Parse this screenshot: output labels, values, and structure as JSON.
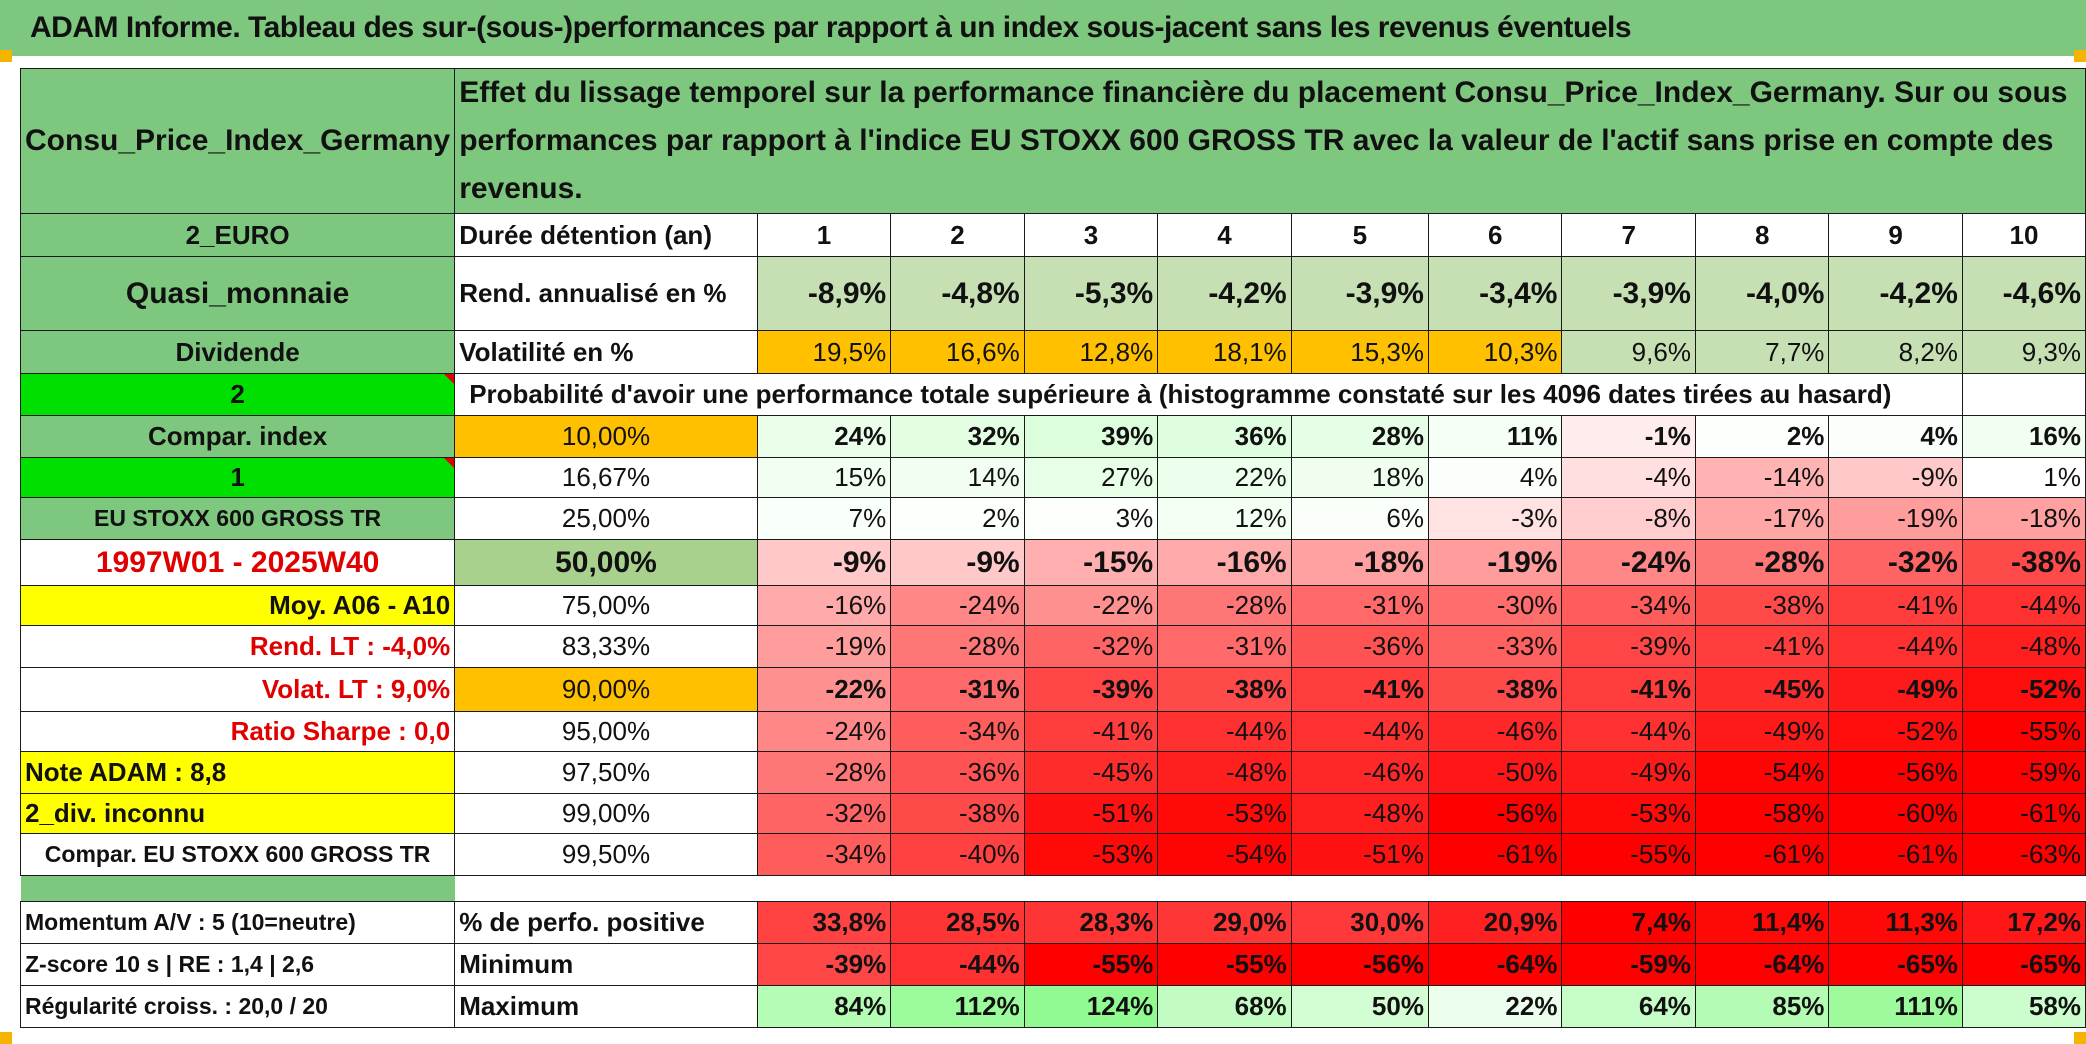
{
  "banner_title": "ADAM Informe. Tableau des sur-(sous-)performances par rapport à un index sous-jacent sans les revenus éventuels",
  "header": {
    "asset_name": "Consu_Price_Index_Germany",
    "description": "Effet du lissage temporel sur la performance financière du placement Consu_Price_Index_Germany. Sur ou sous performances par rapport à l'indice EU STOXX 600 GROSS TR avec la valeur de l'actif sans prise en compte des revenus."
  },
  "left_labels": {
    "currency": "2_EURO",
    "category": "Quasi_monnaie",
    "dividend": "Dividende",
    "input_1": "2",
    "compar_index": "Compar. index",
    "input_2": "1",
    "index_name": "EU STOXX 600 GROSS TR",
    "period": "1997W01 - 2025W40",
    "moy": "Moy. A06 - A10",
    "rend_lt": "Rend. LT :    -4,0%",
    "volat_lt": "Volat. LT :   9,0%",
    "sharpe": "Ratio Sharpe :    0,0",
    "note": "Note ADAM : 8,8",
    "div_inconnu": "2_div. inconnu",
    "compar_full": "Compar. EU STOXX 600 GROSS TR",
    "momentum": "Momentum A/V : 5 (10=neutre)",
    "zscore": "Z-score 10 s | RE : 1,4 | 2,6",
    "regularite": "Régularité croiss. : 20,0 / 20"
  },
  "summary": {
    "duration_label": "Durée détention (an)",
    "years": [
      "1",
      "2",
      "3",
      "4",
      "5",
      "6",
      "7",
      "8",
      "9",
      "10"
    ],
    "rend_label": "Rend. annualisé en %",
    "rend": [
      "-8,9%",
      "-4,8%",
      "-5,3%",
      "-4,2%",
      "-3,9%",
      "-3,4%",
      "-3,9%",
      "-4,0%",
      "-4,2%",
      "-4,6%"
    ],
    "vol_label": "Volatilité en %",
    "vol": [
      "19,5%",
      "16,6%",
      "12,8%",
      "18,1%",
      "15,3%",
      "10,3%",
      "9,6%",
      "7,7%",
      "8,2%",
      "9,3%"
    ],
    "prob_title": "Probabilité d'avoir une performance totale supérieure à (histogramme constaté sur les 4096 dates tirées au hasard)"
  },
  "prob_rows": [
    {
      "p": "10,00%",
      "v": [
        "24%",
        "32%",
        "39%",
        "36%",
        "28%",
        "11%",
        "-1%",
        "2%",
        "4%",
        "16%"
      ]
    },
    {
      "p": "16,67%",
      "v": [
        "15%",
        "14%",
        "27%",
        "22%",
        "18%",
        "4%",
        "-4%",
        "-14%",
        "-9%",
        "1%"
      ]
    },
    {
      "p": "25,00%",
      "v": [
        "7%",
        "2%",
        "3%",
        "12%",
        "6%",
        "-3%",
        "-8%",
        "-17%",
        "-19%",
        "-18%"
      ]
    },
    {
      "p": "50,00%",
      "v": [
        "-9%",
        "-9%",
        "-15%",
        "-16%",
        "-18%",
        "-19%",
        "-24%",
        "-28%",
        "-32%",
        "-38%"
      ]
    },
    {
      "p": "75,00%",
      "v": [
        "-16%",
        "-24%",
        "-22%",
        "-28%",
        "-31%",
        "-30%",
        "-34%",
        "-38%",
        "-41%",
        "-44%"
      ]
    },
    {
      "p": "83,33%",
      "v": [
        "-19%",
        "-28%",
        "-32%",
        "-31%",
        "-36%",
        "-33%",
        "-39%",
        "-41%",
        "-44%",
        "-48%"
      ]
    },
    {
      "p": "90,00%",
      "v": [
        "-22%",
        "-31%",
        "-39%",
        "-38%",
        "-41%",
        "-38%",
        "-41%",
        "-45%",
        "-49%",
        "-52%"
      ]
    },
    {
      "p": "95,00%",
      "v": [
        "-24%",
        "-34%",
        "-41%",
        "-44%",
        "-44%",
        "-46%",
        "-44%",
        "-49%",
        "-52%",
        "-55%"
      ]
    },
    {
      "p": "97,50%",
      "v": [
        "-28%",
        "-36%",
        "-45%",
        "-48%",
        "-46%",
        "-50%",
        "-49%",
        "-54%",
        "-56%",
        "-59%"
      ]
    },
    {
      "p": "99,00%",
      "v": [
        "-32%",
        "-38%",
        "-51%",
        "-53%",
        "-48%",
        "-56%",
        "-53%",
        "-58%",
        "-60%",
        "-61%"
      ]
    },
    {
      "p": "99,50%",
      "v": [
        "-34%",
        "-40%",
        "-53%",
        "-54%",
        "-51%",
        "-61%",
        "-55%",
        "-61%",
        "-61%",
        "-63%"
      ]
    }
  ],
  "stats": {
    "pos_label": "% de perfo. positive",
    "pos": [
      "33,8%",
      "28,5%",
      "28,3%",
      "29,0%",
      "30,0%",
      "20,9%",
      "7,4%",
      "11,4%",
      "11,3%",
      "17,2%"
    ],
    "min_label": "Minimum",
    "min": [
      "-39%",
      "-44%",
      "-55%",
      "-55%",
      "-56%",
      "-64%",
      "-59%",
      "-64%",
      "-65%",
      "-65%"
    ],
    "max_label": "Maximum",
    "max": [
      "84%",
      "112%",
      "124%",
      "68%",
      "50%",
      "22%",
      "64%",
      "85%",
      "111%",
      "58%"
    ]
  },
  "colors": {
    "banner_green": "#7ec77e",
    "bright_green": "#00e000",
    "yellow": "#ffff00",
    "orange": "#ffc000",
    "text_red": "#e00000"
  }
}
